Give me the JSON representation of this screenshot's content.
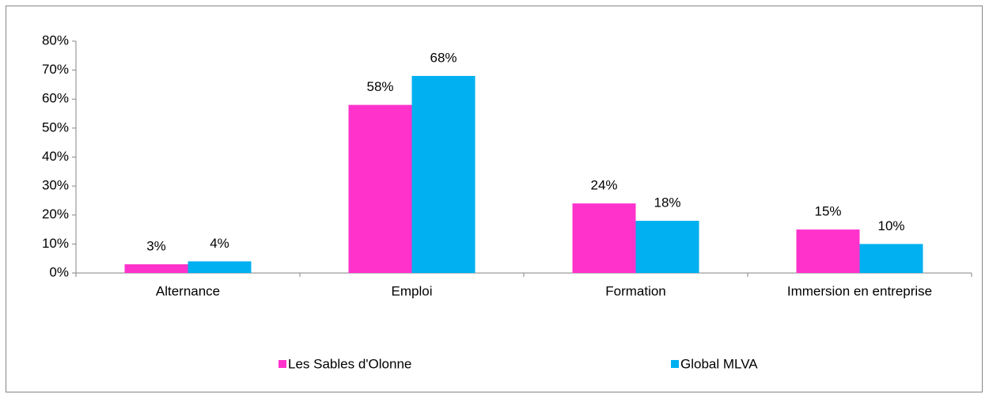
{
  "chart_data": {
    "type": "bar",
    "categories": [
      "Alternance",
      "Emploi",
      "Formation",
      "Immersion en entreprise"
    ],
    "series": [
      {
        "name": "Les Sables d'Olonne",
        "color": "#ff33cc",
        "values": [
          3,
          58,
          24,
          15
        ],
        "value_labels": [
          "3%",
          "58%",
          "24%",
          "15%"
        ]
      },
      {
        "name": "Global MLVA",
        "color": "#00b0f0",
        "values": [
          4,
          68,
          18,
          10
        ],
        "value_labels": [
          "4%",
          "68%",
          "18%",
          "10%"
        ]
      }
    ],
    "ylim": [
      0,
      80
    ],
    "yticks": [
      {
        "value": 0,
        "label": "0%"
      },
      {
        "value": 10,
        "label": "10%"
      },
      {
        "value": 20,
        "label": "20%"
      },
      {
        "value": 30,
        "label": "30%"
      },
      {
        "value": 40,
        "label": "40%"
      },
      {
        "value": 50,
        "label": "50%"
      },
      {
        "value": 60,
        "label": "60%"
      },
      {
        "value": 70,
        "label": "70%"
      },
      {
        "value": 80,
        "label": "80%"
      }
    ],
    "grid": false,
    "legend": "bottom"
  }
}
